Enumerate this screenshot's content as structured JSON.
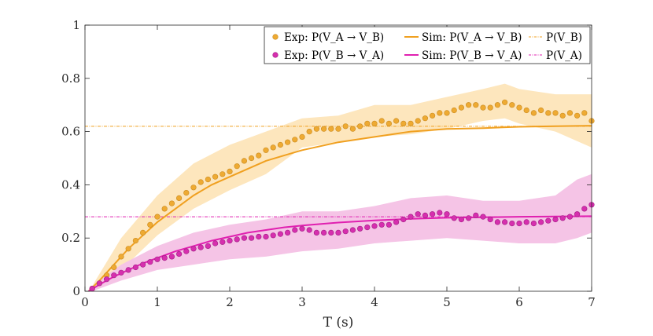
{
  "chart_data": {
    "type": "scatter",
    "title": "",
    "xlabel": "T (s)",
    "ylabel": "",
    "xlim": [
      0,
      7
    ],
    "ylim": [
      0,
      1
    ],
    "xticks": [
      0,
      1,
      2,
      3,
      4,
      5,
      6,
      7
    ],
    "xtick_labels": [
      "0",
      "1",
      "2",
      "3",
      "4",
      "5",
      "6",
      "7"
    ],
    "yticks": [
      0,
      0.2,
      0.4,
      0.6,
      0.8,
      1
    ],
    "ytick_labels": [
      "0",
      "0.2",
      "0.4",
      "0.6",
      "0.8",
      "1"
    ],
    "grid": false,
    "legend_position": "top-right",
    "legend": [
      "Exp: P(V_A → V_B)",
      "Sim: P(V_A → V_B)",
      "P(V_B)",
      "Exp: P(V_B → V_A)",
      "Sim: P(V_B → V_A)",
      "P(V_A)"
    ],
    "colors": {
      "orange": "#f0a020",
      "orange_point": "#eeaa33",
      "orange_point_edge": "#c98a1e",
      "orange_band": "#fde6bd",
      "magenta": "#e020b0",
      "magenta_point": "#d62fae",
      "magenta_point_edge": "#a01d84",
      "magenta_band": "#f5c4e6"
    },
    "series": [
      {
        "name": "Exp: P(V_A → V_B)",
        "kind": "points",
        "x": [
          0.1,
          0.2,
          0.3,
          0.4,
          0.5,
          0.6,
          0.7,
          0.8,
          0.9,
          1.0,
          1.1,
          1.2,
          1.3,
          1.4,
          1.5,
          1.6,
          1.7,
          1.8,
          1.9,
          2.0,
          2.1,
          2.2,
          2.3,
          2.4,
          2.5,
          2.6,
          2.7,
          2.8,
          2.9,
          3.0,
          3.1,
          3.2,
          3.3,
          3.4,
          3.5,
          3.6,
          3.7,
          3.8,
          3.9,
          4.0,
          4.1,
          4.2,
          4.3,
          4.4,
          4.5,
          4.6,
          4.7,
          4.8,
          4.9,
          5.0,
          5.1,
          5.2,
          5.3,
          5.4,
          5.5,
          5.6,
          5.7,
          5.8,
          5.9,
          6.0,
          6.1,
          6.2,
          6.3,
          6.4,
          6.5,
          6.6,
          6.7,
          6.8,
          6.9,
          7.0
        ],
        "values": [
          0.01,
          0.03,
          0.06,
          0.09,
          0.13,
          0.16,
          0.19,
          0.22,
          0.25,
          0.28,
          0.31,
          0.33,
          0.35,
          0.37,
          0.39,
          0.41,
          0.42,
          0.43,
          0.44,
          0.45,
          0.47,
          0.49,
          0.5,
          0.51,
          0.53,
          0.54,
          0.55,
          0.56,
          0.57,
          0.58,
          0.6,
          0.61,
          0.61,
          0.61,
          0.61,
          0.62,
          0.61,
          0.62,
          0.63,
          0.63,
          0.64,
          0.63,
          0.64,
          0.63,
          0.63,
          0.64,
          0.65,
          0.66,
          0.67,
          0.67,
          0.68,
          0.69,
          0.7,
          0.7,
          0.69,
          0.69,
          0.7,
          0.71,
          0.7,
          0.69,
          0.68,
          0.67,
          0.68,
          0.67,
          0.67,
          0.66,
          0.67,
          0.66,
          0.67,
          0.64
        ]
      },
      {
        "name": "Sim: P(V_A → V_B)",
        "kind": "line",
        "x": [
          0.05,
          0.2,
          0.4,
          0.6,
          0.8,
          1.0,
          1.25,
          1.5,
          1.75,
          2.0,
          2.25,
          2.5,
          2.75,
          3.0,
          3.5,
          4.0,
          4.5,
          5.0,
          5.5,
          6.0,
          6.5,
          7.0
        ],
        "values": [
          0.0,
          0.04,
          0.1,
          0.16,
          0.21,
          0.26,
          0.31,
          0.36,
          0.4,
          0.43,
          0.46,
          0.49,
          0.51,
          0.53,
          0.56,
          0.58,
          0.6,
          0.61,
          0.613,
          0.618,
          0.62,
          0.622
        ]
      },
      {
        "name": "P(V_B)",
        "kind": "hline",
        "value": 0.62
      },
      {
        "name": "Exp: P(V_B → V_A)",
        "kind": "points",
        "x": [
          0.1,
          0.2,
          0.3,
          0.4,
          0.5,
          0.6,
          0.7,
          0.8,
          0.9,
          1.0,
          1.1,
          1.2,
          1.3,
          1.4,
          1.5,
          1.6,
          1.7,
          1.8,
          1.9,
          2.0,
          2.1,
          2.2,
          2.3,
          2.4,
          2.5,
          2.6,
          2.7,
          2.8,
          2.9,
          3.0,
          3.1,
          3.2,
          3.3,
          3.4,
          3.5,
          3.6,
          3.7,
          3.8,
          3.9,
          4.0,
          4.1,
          4.2,
          4.3,
          4.4,
          4.5,
          4.6,
          4.7,
          4.8,
          4.9,
          5.0,
          5.1,
          5.2,
          5.3,
          5.4,
          5.5,
          5.6,
          5.7,
          5.8,
          5.9,
          6.0,
          6.1,
          6.2,
          6.3,
          6.4,
          6.5,
          6.6,
          6.7,
          6.8,
          6.9,
          7.0
        ],
        "values": [
          0.01,
          0.03,
          0.045,
          0.06,
          0.07,
          0.08,
          0.09,
          0.1,
          0.11,
          0.12,
          0.125,
          0.13,
          0.14,
          0.15,
          0.16,
          0.165,
          0.17,
          0.18,
          0.185,
          0.19,
          0.195,
          0.2,
          0.2,
          0.205,
          0.205,
          0.21,
          0.215,
          0.22,
          0.23,
          0.235,
          0.23,
          0.22,
          0.22,
          0.22,
          0.22,
          0.225,
          0.23,
          0.235,
          0.24,
          0.245,
          0.25,
          0.25,
          0.26,
          0.27,
          0.28,
          0.29,
          0.285,
          0.29,
          0.295,
          0.29,
          0.275,
          0.27,
          0.275,
          0.285,
          0.28,
          0.27,
          0.26,
          0.26,
          0.255,
          0.255,
          0.26,
          0.255,
          0.26,
          0.265,
          0.27,
          0.275,
          0.28,
          0.29,
          0.31,
          0.325
        ]
      },
      {
        "name": "Sim: P(V_B → V_A)",
        "kind": "line",
        "x": [
          0.05,
          0.2,
          0.4,
          0.6,
          0.8,
          1.0,
          1.25,
          1.5,
          1.75,
          2.0,
          2.25,
          2.5,
          2.75,
          3.0,
          3.5,
          4.0,
          4.5,
          5.0,
          5.5,
          6.0,
          6.5,
          7.0
        ],
        "values": [
          0.0,
          0.025,
          0.055,
          0.08,
          0.105,
          0.125,
          0.15,
          0.17,
          0.19,
          0.205,
          0.22,
          0.23,
          0.24,
          0.247,
          0.258,
          0.266,
          0.272,
          0.276,
          0.278,
          0.28,
          0.281,
          0.282
        ]
      },
      {
        "name": "P(V_A)",
        "kind": "hline",
        "value": 0.28
      }
    ],
    "bands": [
      {
        "series": "Exp: P(V_A → V_B)",
        "x": [
          0.1,
          0.5,
          1.0,
          1.5,
          2.0,
          2.5,
          3.0,
          3.5,
          4.0,
          4.5,
          5.0,
          5.5,
          5.8,
          6.0,
          6.5,
          7.0
        ],
        "upper": [
          0.02,
          0.2,
          0.36,
          0.48,
          0.55,
          0.6,
          0.65,
          0.66,
          0.7,
          0.7,
          0.73,
          0.76,
          0.78,
          0.76,
          0.74,
          0.74
        ],
        "lower": [
          0.0,
          0.08,
          0.21,
          0.31,
          0.38,
          0.44,
          0.54,
          0.56,
          0.58,
          0.59,
          0.61,
          0.64,
          0.65,
          0.63,
          0.6,
          0.54
        ]
      },
      {
        "series": "Exp: P(V_B → V_A)",
        "x": [
          0.1,
          0.5,
          1.0,
          1.5,
          2.0,
          2.5,
          3.0,
          3.5,
          4.0,
          4.5,
          5.0,
          5.5,
          6.0,
          6.5,
          6.8,
          7.0
        ],
        "upper": [
          0.02,
          0.1,
          0.17,
          0.22,
          0.25,
          0.27,
          0.3,
          0.3,
          0.32,
          0.35,
          0.36,
          0.34,
          0.34,
          0.36,
          0.42,
          0.44
        ],
        "lower": [
          0.0,
          0.04,
          0.08,
          0.1,
          0.12,
          0.13,
          0.15,
          0.16,
          0.18,
          0.19,
          0.2,
          0.19,
          0.18,
          0.18,
          0.2,
          0.22
        ]
      }
    ]
  }
}
